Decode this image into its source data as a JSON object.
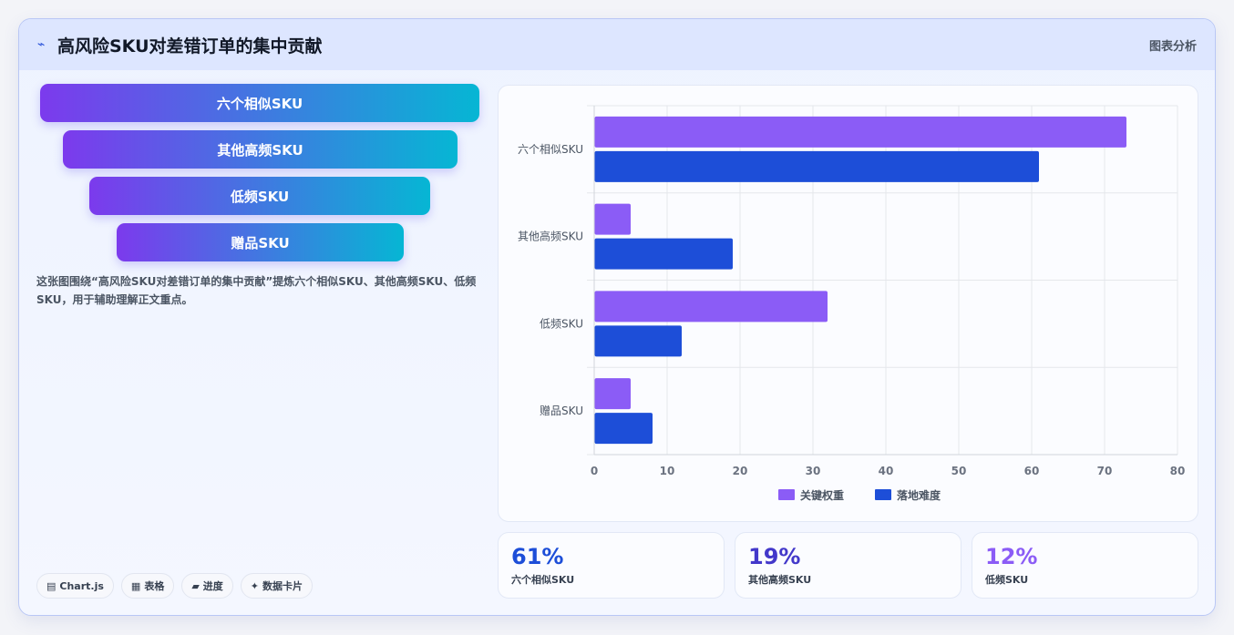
{
  "header": {
    "title": "高风险SKU对差错订单的集中贡献",
    "tag": "图表分析",
    "icon": "spark-icon"
  },
  "funnel": [
    "六个相似SKU",
    "其他高频SKU",
    "低频SKU",
    "赠品SKU"
  ],
  "description": "这张图围绕“高风险SKU对差错订单的集中贡献”提炼六个相似SKU、其他高频SKU、低频SKU，用于辅助理解正文重点。",
  "chips": [
    {
      "icon": "chart-icon",
      "glyph": "▤",
      "label": "Chart.js"
    },
    {
      "icon": "table-icon",
      "glyph": "▦",
      "label": "表格"
    },
    {
      "icon": "progress-icon",
      "glyph": "▰",
      "label": "进度"
    },
    {
      "icon": "card-icon",
      "glyph": "✦",
      "label": "数据卡片"
    }
  ],
  "chart_data": {
    "type": "bar",
    "orientation": "horizontal",
    "categories": [
      "六个相似SKU",
      "其他高频SKU",
      "低频SKU",
      "赠品SKU"
    ],
    "series": [
      {
        "name": "关键权重",
        "values": [
          73,
          5,
          32,
          5
        ],
        "color": "#8b5cf6"
      },
      {
        "name": "落地难度",
        "values": [
          61,
          19,
          12,
          8
        ],
        "color": "#1d4ed8"
      }
    ],
    "xlim": [
      0,
      80
    ],
    "xticks": [
      0,
      10,
      20,
      30,
      40,
      50,
      60,
      70,
      80
    ],
    "grid": true,
    "legend": "bottom"
  },
  "stats": [
    {
      "value": "61%",
      "label": "六个相似SKU",
      "color": "#1d4ed8"
    },
    {
      "value": "19%",
      "label": "其他高频SKU",
      "color": "#4338ca"
    },
    {
      "value": "12%",
      "label": "低频SKU",
      "color": "#8b5cf6"
    }
  ]
}
